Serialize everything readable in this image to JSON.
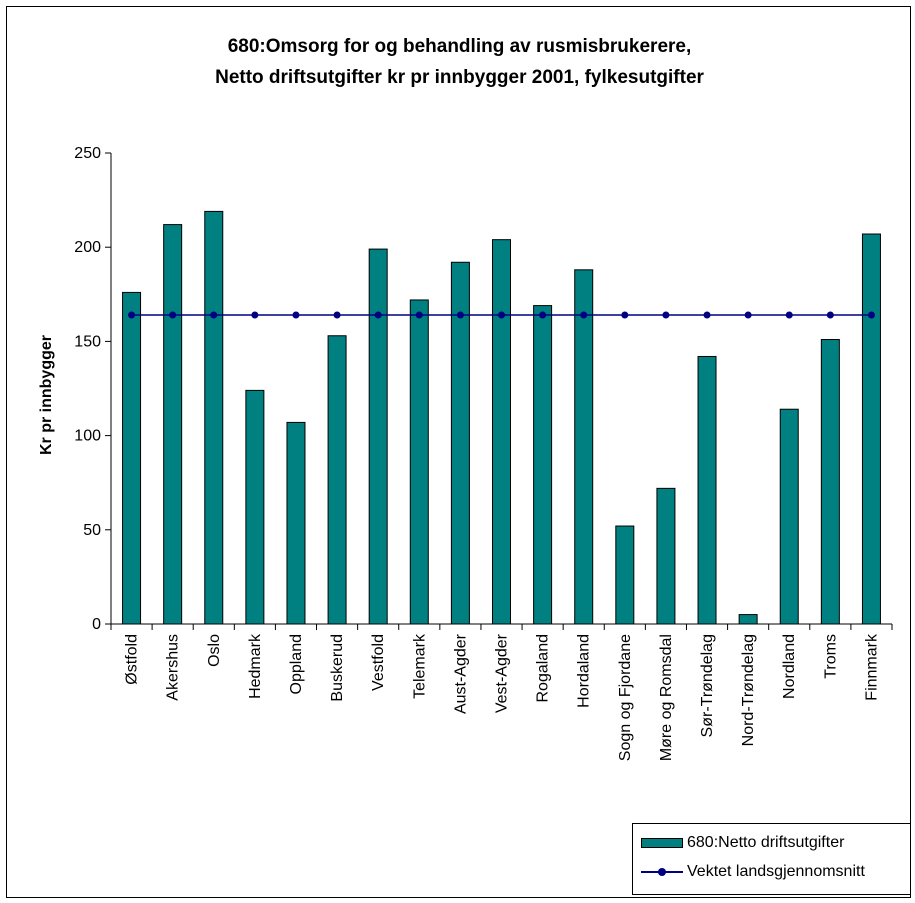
{
  "chart_data": {
    "type": "bar",
    "title": [
      "680:Omsorg for og behandling av rusmisbrukerere,",
      "Netto driftsutgifter kr pr innbygger 2001, fylkesutgifter"
    ],
    "ylabel": "Kr pr innbygger",
    "xlabel": "",
    "ylim": [
      0,
      250
    ],
    "yticks": [
      0,
      50,
      100,
      150,
      200,
      250
    ],
    "grid": false,
    "legend_position": "bottom-right",
    "categories": [
      "Østfold",
      "Akershus",
      "Oslo",
      "Hedmark",
      "Oppland",
      "Buskerud",
      "Vestfold",
      "Telemark",
      "Aust-Agder",
      "Vest-Agder",
      "Rogaland",
      "Hordaland",
      "Sogn og Fjordane",
      "Møre og Romsdal",
      "Sør-Trøndelag",
      "Nord-Trøndelag",
      "Nordland",
      "Troms",
      "Finnmark"
    ],
    "series": [
      {
        "name": "680:Netto driftsutgifter",
        "type": "bar",
        "color": "#008080",
        "values": [
          176,
          212,
          219,
          124,
          107,
          153,
          199,
          172,
          192,
          204,
          169,
          188,
          52,
          72,
          142,
          5,
          114,
          151,
          207
        ]
      },
      {
        "name": "Vektet landsgjennomsnitt",
        "type": "line",
        "color": "#000080",
        "values": [
          164,
          164,
          164,
          164,
          164,
          164,
          164,
          164,
          164,
          164,
          164,
          164,
          164,
          164,
          164,
          164,
          164,
          164,
          164
        ]
      }
    ]
  }
}
